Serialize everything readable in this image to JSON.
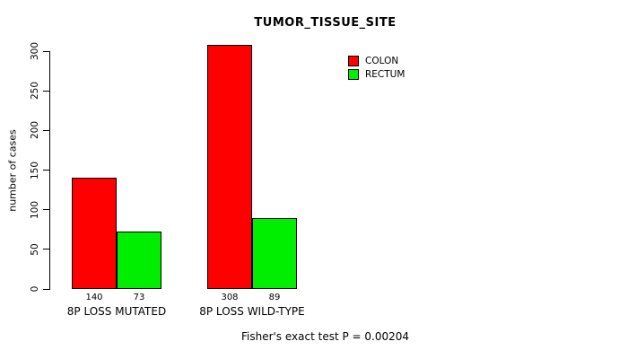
{
  "title": "TUMOR_TISSUE_SITE",
  "footer": {
    "caption": "Fisher's exact test P = 0.00204"
  },
  "chart_data": {
    "type": "bar",
    "title": "TUMOR_TISSUE_SITE",
    "categories": [
      "8P LOSS MUTATED",
      "8P LOSS WILD-TYPE"
    ],
    "series": [
      {
        "name": "COLON",
        "color": "#ff0000",
        "values": [
          140,
          308
        ]
      },
      {
        "name": "RECTUM",
        "color": "#00ee00",
        "values": [
          73,
          89
        ]
      }
    ],
    "xlabel": "",
    "ylabel": "number of cases",
    "ylim": [
      0,
      300
    ],
    "yticks": [
      0,
      50,
      100,
      150,
      200,
      250,
      300
    ],
    "grid": false,
    "legend_position": "top-right",
    "bar_value_labels": [
      140,
      73,
      308,
      89
    ],
    "annotation": "Fisher's exact test P = 0.00204"
  }
}
